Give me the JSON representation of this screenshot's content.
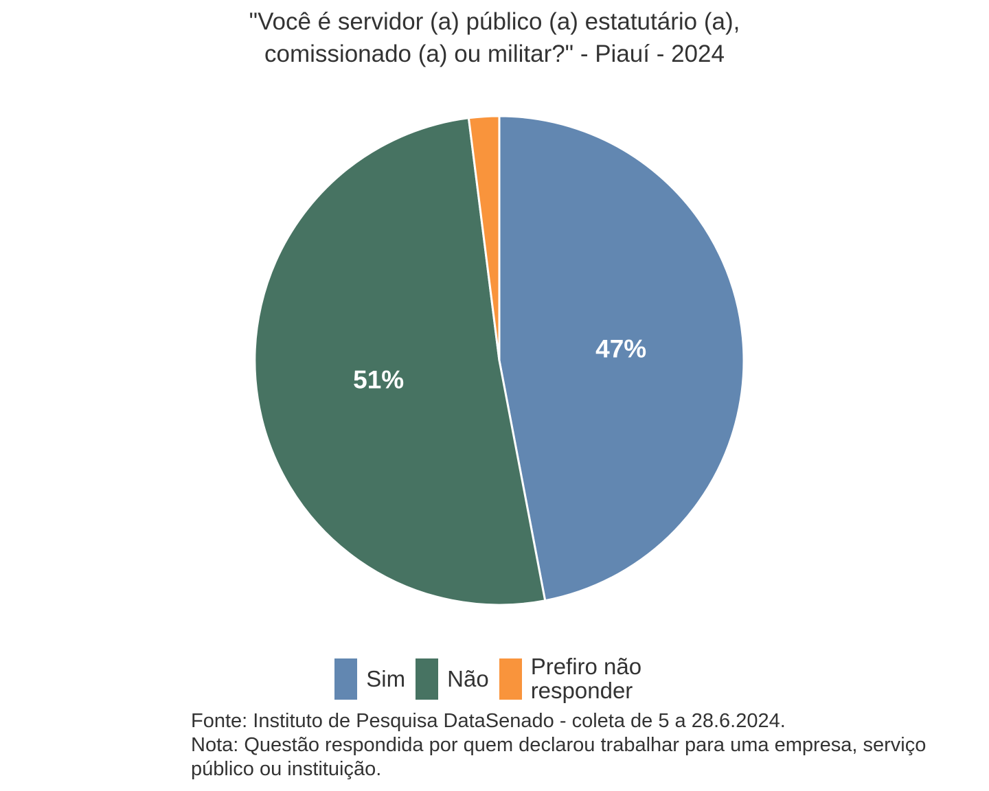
{
  "title": {
    "line1": "\"Você é servidor (a) público (a) estatutário (a),",
    "line2": "comissionado (a) ou militar?\" - Piauí - 2024"
  },
  "chart_data": {
    "type": "pie",
    "title": "\"Você é servidor (a) público (a) estatutário (a), comissionado (a) ou militar?\" - Piauí - 2024",
    "unit": "percent",
    "total": 100,
    "direction": "clockwise",
    "start_angle_deg": 0,
    "label_radius_fraction": 0.5,
    "slice_border_color": "#FFFFFF",
    "legend_position": "bottom",
    "slices": [
      {
        "label": "Sim",
        "value": 47,
        "display_label": "47%",
        "color": "#6287B1"
      },
      {
        "label": "Não",
        "value": 51,
        "display_label": "51%",
        "color": "#477362"
      },
      {
        "label": "Prefiro não responder",
        "value": 2,
        "display_label": "",
        "color": "#F9943C"
      }
    ]
  },
  "footer": {
    "fonte": "Fonte: Instituto de Pesquisa DataSenado - coleta de 5 a 28.6.2024.",
    "nota": "Nota: Questão respondida por quem declarou trabalhar para uma empresa, serviço público ou instituição."
  },
  "colors": {
    "text": "#333333",
    "percent_label": "#FFFFFF",
    "background": "#FFFFFF"
  }
}
